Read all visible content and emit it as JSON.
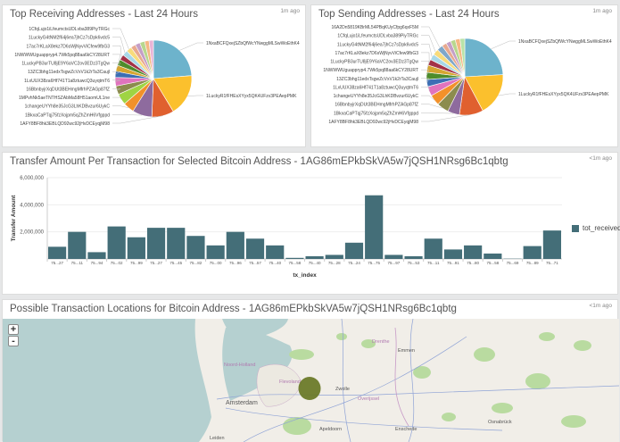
{
  "panels": {
    "receiving": {
      "title": "Top Receiving Addresses - Last 24 Hours",
      "updated": "1m ago"
    },
    "sending": {
      "title": "Top Sending Addresses - Last 24 Hours",
      "updated": "1m ago"
    },
    "transfer": {
      "title": "Transfer Amount Per Transaction for Selected Bitcoin Address - 1AG86mEPkbSkVA5w7jQSH1NRsg6Bc1qbtg",
      "updated": "<1m ago"
    },
    "map": {
      "title": "Possible Transaction Locations for Bitcoin Address - 1AG86mEPkbSkVA5w7jQSH1NRsg6Bc1qbtg",
      "updated": "<1m ago",
      "zoom_in": "+",
      "zoom_out": "-",
      "place_labels": [
        "Noord-Holland",
        "Flevoland",
        "Amsterdam",
        "Zwolle",
        "Overijssel",
        "Drenthe",
        "Emmen",
        "Apeldoorn",
        "Enschede",
        "Leiden",
        "Osnabrück"
      ],
      "marker_color": "#6b7a2a"
    }
  },
  "chart_data": [
    {
      "type": "pie",
      "title": "Top Receiving Addresses - Last 24 Hours",
      "slices": [
        {
          "label": "1NxaBCFQxejSZbQfWcYNwggMLSwWoEthK4",
          "value": 23,
          "color": "#6db3cc"
        },
        {
          "label": "1LuckyR1fFHEsXYyx5QK4UFzv3PEAepPMK",
          "value": 17,
          "color": "#fbc02d"
        },
        {
          "label": "1AFY8BF8hk3EBLQD92wc92jHvDCEyqjM98",
          "value": 9,
          "color": "#e0602f"
        },
        {
          "label": "1BkxaCaPTqj75fzXojpm5qZhZmH6Vfgppd",
          "value": 8,
          "color": "#8e6b9e"
        },
        {
          "label": "1changeUYYh8e35JcG3LhKDBvzur6UykC",
          "value": 4.5,
          "color": "#f2912a"
        },
        {
          "label": "1MPvhNk5aeTNTHSZAbMa58H51aomUL1ne",
          "value": 4.5,
          "color": "#9fd443"
        },
        {
          "label": "16BbnbyjrXqDUt3BEHmgMfrhPZAGp87fZ",
          "value": 3.5,
          "color": "#8c8c4e"
        },
        {
          "label": "1LxUUX38za6Hf741T1a8ztuwcQ3uyqtmT6",
          "value": 3.5,
          "color": "#e073bd"
        },
        {
          "label": "13ZC3bhg11edxTsgwZcVxV1k2rTa3Caujl",
          "value": 2.5,
          "color": "#3c6eb4"
        },
        {
          "label": "1LuckyPB3urTU8jE9Y6aVC2ov3EDz3TgQw",
          "value": 2.5,
          "color": "#d6a631"
        },
        {
          "label": "1NWWWUguappryp4.7Wk5pq88aa6kCY28URT",
          "value": 2.5,
          "color": "#4e8c2b"
        },
        {
          "label": "17ac7rKLaX8ekz7D6sWjNyvViCfew9fbG3",
          "value": 2.2,
          "color": "#a33247"
        },
        {
          "label": "1LuckyG4tNM2f64j6ea7jhCz7sDpk6vdc5",
          "value": 2.2,
          "color": "#a8d8e8"
        },
        {
          "label": "1CfqLujo1iLfeumctsUDLvba389PiyTRGc",
          "value": 2.2,
          "color": "#f8db7b"
        },
        {
          "label": "",
          "value": 2,
          "color": "#e8a98f"
        },
        {
          "label": "",
          "value": 2,
          "color": "#c49fc7"
        },
        {
          "label": "",
          "value": 2,
          "color": "#b8d78e"
        },
        {
          "label": "",
          "value": 1.8,
          "color": "#f5b884"
        },
        {
          "label": "",
          "value": 1.8,
          "color": "#e8b4d6"
        }
      ]
    },
    {
      "type": "pie",
      "title": "Top Sending Addresses - Last 24 Hours",
      "slices": [
        {
          "label": "1NxaBCFQxejSZbQfWcYNwggMLSwWoEthK4",
          "value": 24,
          "color": "#6db3cc"
        },
        {
          "label": "1LuckyR1fFHEsXYyx5QK4UFzv3PEAepPMK",
          "value": 18,
          "color": "#fbc02d"
        },
        {
          "label": "1AFY8BF8hk3EBLQD92wc92jHvDCEyqjM98",
          "value": 10,
          "color": "#e0602f"
        },
        {
          "label": "1BkxaCaPTqj75fzXojpm5qZhZmH6Vfgppd",
          "value": 5,
          "color": "#8e6b9e"
        },
        {
          "label": "16BbnbyjrXqDUt3BEHmgMfrhPZAGp87fZ",
          "value": 5,
          "color": "#8c8c4e"
        },
        {
          "label": "1changeUYYh8e35JcG3LhKDBvzur6UykC",
          "value": 4.5,
          "color": "#f2912a"
        },
        {
          "label": "1LxUUX38za6Hf741T1a8ztuwcQ3uyqtmT6",
          "value": 4,
          "color": "#e073bd"
        },
        {
          "label": "13ZC3bhg11edxTsgwZcVxV1k2rTa3Caujl",
          "value": 3,
          "color": "#3c6eb4"
        },
        {
          "label": "1NWWWUguappryp4.7Wk5pq88aa6kCY28URT",
          "value": 3,
          "color": "#4e8c2b"
        },
        {
          "label": "1LuckyPB3urTU8jE9Y6aVC2ov3EDz3TgQw",
          "value": 3,
          "color": "#d6a631"
        },
        {
          "label": "17ac7rKLaX8ekz7D6sWjNyvViCfew9fbG3",
          "value": 2.5,
          "color": "#a33247"
        },
        {
          "label": "1LuckyG4tNM2f64j6ea7jhCz7sDpk6vdc5",
          "value": 2.5,
          "color": "#a8d8e8"
        },
        {
          "label": "1CfqLujo1iLfeumctsUDLvba389PiyTRGc",
          "value": 2.5,
          "color": "#f8db7b"
        },
        {
          "label": "16A2Dn5819KBrML54PBqKUyCfpg6qxF5M",
          "value": 2.5,
          "color": "#7fa7c9"
        },
        {
          "label": "",
          "value": 2,
          "color": "#e8a98f"
        },
        {
          "label": "",
          "value": 2,
          "color": "#c49fc7"
        },
        {
          "label": "",
          "value": 2,
          "color": "#b8d78e"
        },
        {
          "label": "",
          "value": 2,
          "color": "#f5b884"
        },
        {
          "label": "",
          "value": 2,
          "color": "#b9e3a8"
        }
      ]
    },
    {
      "type": "bar",
      "title": "Transfer Amount Per Transaction for Selected Bitcoin Address - 1AG86mEPkbSkVA5w7jQSH1NRsg6Bc1qbtg",
      "xlabel": "tx_index",
      "ylabel": "Transfer Amount",
      "ylim": [
        0,
        6000000
      ],
      "yticks": [
        "2,000,000",
        "4,000,000",
        "6,000,000"
      ],
      "ytick_values": [
        2000000,
        4000000,
        6000000
      ],
      "grid": true,
      "legend_position": "right",
      "categories": [
        "75...27",
        "75...11",
        "75...94",
        "75...02",
        "75...99",
        "75...27",
        "75...45",
        "75...82",
        "75...00",
        "75...96",
        "75...57",
        "75...40",
        "75...58",
        "75...40",
        "75...28",
        "75...24",
        "75...75",
        "75...97",
        "75...53",
        "75...11",
        "75...91",
        "75...80",
        "75...58",
        "75...69",
        "75...89",
        "75...71"
      ],
      "series": [
        {
          "name": "tot_received",
          "color": "#446e78",
          "values": [
            900000,
            2000000,
            500000,
            2400000,
            1600000,
            2300000,
            2300000,
            1700000,
            1000000,
            2000000,
            1500000,
            1000000,
            80000,
            200000,
            300000,
            1200000,
            4700000,
            300000,
            200000,
            1500000,
            700000,
            1000000,
            400000,
            20000,
            950000,
            2100000
          ]
        }
      ]
    }
  ]
}
